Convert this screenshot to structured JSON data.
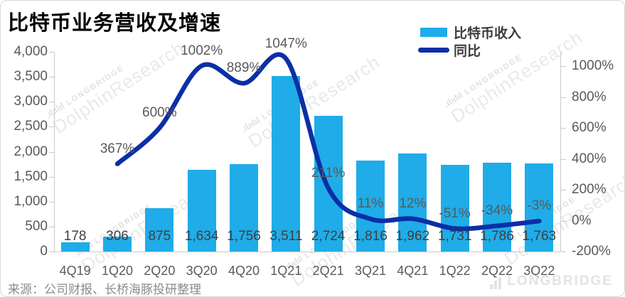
{
  "source": "来源：公司财报、长桥海豚投研整理",
  "watermarks": {
    "brand_small": "LONGBRIDGE",
    "brand_big": "DolphinResearch",
    "footer_brand": "LONGBRIDGE"
  },
  "colors": {
    "bar": "#1FACE8",
    "line": "#0A2FA6",
    "axis_text": "#595959",
    "bar_label_text": "#3f3f3f",
    "title_text": "#000000",
    "source_text": "#8a8a8a",
    "axis_line": "#c9c9c9",
    "watermark": "#e6e6e6"
  },
  "chart_data": {
    "type": "bar+line combo",
    "title": "比特币业务营收及增速",
    "categories": [
      "4Q19",
      "1Q20",
      "2Q20",
      "3Q20",
      "4Q20",
      "1Q21",
      "2Q21",
      "3Q21",
      "4Q21",
      "1Q22",
      "2Q22",
      "3Q22"
    ],
    "series": [
      {
        "name": "比特币收入",
        "type": "bar",
        "axis": "left",
        "values": [
          178,
          306,
          875,
          1634,
          1756,
          3511,
          2724,
          1816,
          1962,
          1731,
          1786,
          1763
        ],
        "labels": [
          "178",
          "306",
          "875",
          "1,634",
          "1,756",
          "3,511",
          "2,724",
          "1,816",
          "1,962",
          "1,731",
          "1,786",
          "1,763"
        ]
      },
      {
        "name": "同比",
        "type": "line",
        "axis": "right",
        "values": [
          null,
          367,
          600,
          1002,
          889,
          1047,
          211,
          11,
          12,
          -51,
          -34,
          -3
        ],
        "labels": [
          null,
          "367%",
          "600%",
          "1002%",
          "889%",
          "1047%",
          "211%",
          "11%",
          "12%",
          "-51%",
          "-34%",
          "-3%"
        ]
      }
    ],
    "left_axis": {
      "tick_labels": [
        "4,000",
        "3,500",
        "3,000",
        "2,500",
        "2,000",
        "1,500",
        "1,000",
        "500",
        "0"
      ],
      "min": 0,
      "max": 4000
    },
    "right_axis": {
      "tick_labels": [
        "1000%",
        "800%",
        "600%",
        "400%",
        "200%",
        "0%",
        "-200%"
      ],
      "min": -200,
      "max": 1000
    },
    "grid": "off",
    "legend_position": "top-right"
  }
}
